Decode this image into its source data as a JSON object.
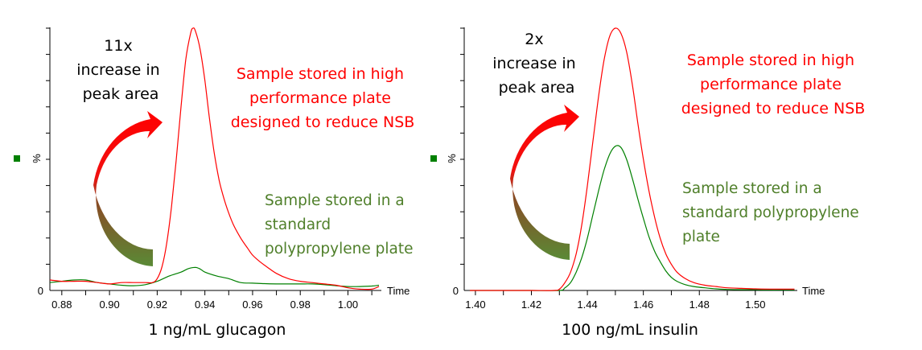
{
  "chart_data": [
    {
      "type": "line",
      "title": "1 ng/mL glucagon",
      "xlabel": "Time",
      "ylabel": "%",
      "xlim": [
        0.875,
        1.014
      ],
      "ylim": [
        0,
        100
      ],
      "x_ticks": [
        "0.88",
        "0.90",
        "0.92",
        "0.94",
        "0.96",
        "0.98",
        "1.00"
      ],
      "x_tick_values": [
        0.88,
        0.9,
        0.92,
        0.94,
        0.96,
        0.98,
        1.0
      ],
      "y_tick_labels": [
        "0"
      ],
      "grid": false,
      "legend_marker_color": "#008000",
      "annotation_increase": [
        "11x",
        "increase in",
        "peak area"
      ],
      "annotation_red": [
        "Sample stored in high",
        "performance plate",
        "designed to reduce NSB"
      ],
      "annotation_green": [
        "Sample stored in a",
        "standard",
        "polypropylene plate"
      ],
      "series": [
        {
          "name": "Sample stored in high performance plate designed to reduce NSB",
          "color": "#ff0000",
          "x": [
            0.875,
            0.88,
            0.885,
            0.89,
            0.895,
            0.9,
            0.905,
            0.91,
            0.915,
            0.918,
            0.92,
            0.922,
            0.924,
            0.926,
            0.928,
            0.93,
            0.932,
            0.934,
            0.935,
            0.936,
            0.938,
            0.94,
            0.942,
            0.944,
            0.946,
            0.948,
            0.95,
            0.952,
            0.955,
            0.958,
            0.96,
            0.963,
            0.966,
            0.97,
            0.975,
            0.98,
            0.985,
            0.99,
            0.995,
            1.0,
            1.005,
            1.01,
            1.013
          ],
          "values": [
            4.0,
            3.5,
            3.5,
            3.5,
            3.0,
            2.5,
            3.0,
            3.0,
            3.0,
            3.0,
            4.5,
            9.0,
            18.0,
            32.0,
            50.0,
            70.0,
            88.0,
            98.0,
            100.0,
            99.0,
            92.0,
            80.0,
            65.0,
            52.0,
            42.0,
            35.0,
            29.5,
            25.0,
            20.0,
            16.0,
            13.5,
            11.0,
            9.0,
            6.5,
            4.5,
            3.5,
            3.0,
            2.5,
            2.0,
            1.0,
            0.5,
            0.5,
            1.5
          ]
        },
        {
          "name": "Sample stored in a standard polypropylene plate",
          "color": "#008000",
          "x": [
            0.875,
            0.88,
            0.885,
            0.89,
            0.895,
            0.9,
            0.905,
            0.91,
            0.915,
            0.92,
            0.925,
            0.93,
            0.933,
            0.936,
            0.938,
            0.94,
            0.945,
            0.95,
            0.955,
            0.96,
            0.965,
            0.97,
            0.975,
            0.98,
            0.985,
            0.99,
            0.995,
            1.0,
            1.005,
            1.01,
            1.013
          ],
          "values": [
            3.0,
            3.5,
            4.0,
            4.0,
            3.0,
            2.5,
            2.0,
            1.8,
            2.2,
            3.5,
            5.5,
            7.0,
            8.3,
            8.8,
            8.2,
            7.0,
            5.5,
            4.5,
            3.0,
            2.8,
            2.6,
            2.5,
            2.5,
            2.5,
            2.5,
            2.2,
            1.8,
            1.5,
            1.5,
            1.7,
            2.0
          ]
        }
      ]
    },
    {
      "type": "line",
      "title": "100 ng/mL insulin",
      "xlabel": "Time",
      "ylabel": "%",
      "xlim": [
        1.396,
        1.515
      ],
      "ylim": [
        0,
        100
      ],
      "x_ticks": [
        "1.40",
        "1.42",
        "1.44",
        "1.46",
        "1.48",
        "1.50"
      ],
      "x_tick_values": [
        1.4,
        1.42,
        1.44,
        1.46,
        1.48,
        1.5
      ],
      "y_tick_labels": [
        "0"
      ],
      "grid": false,
      "legend_marker_color": "#008000",
      "annotation_increase": [
        "2x",
        "increase in",
        "peak area"
      ],
      "annotation_red": [
        "Sample stored in high",
        "performance plate",
        "designed to reduce NSB"
      ],
      "annotation_green": [
        "Sample stored in a",
        "standard polypropylene",
        "plate"
      ],
      "series": [
        {
          "name": "Sample stored in high performance plate designed to reduce NSB",
          "color": "#ff0000",
          "x": [
            1.398,
            1.41,
            1.42,
            1.428,
            1.43,
            1.432,
            1.434,
            1.436,
            1.438,
            1.44,
            1.442,
            1.444,
            1.446,
            1.448,
            1.45,
            1.452,
            1.454,
            1.456,
            1.458,
            1.46,
            1.462,
            1.464,
            1.466,
            1.468,
            1.47,
            1.472,
            1.475,
            1.478,
            1.482,
            1.486,
            1.49,
            1.495,
            1.5,
            1.505,
            1.51,
            1.514
          ],
          "values": [
            0,
            0,
            0,
            0,
            0.5,
            3.0,
            7.0,
            14.0,
            25.0,
            40.0,
            57.0,
            74.0,
            88.0,
            97.0,
            100.0,
            98.0,
            91.0,
            79.0,
            64.0,
            50.0,
            38.0,
            28.0,
            20.0,
            14.0,
            10.0,
            7.0,
            4.5,
            3.0,
            2.0,
            1.5,
            1.0,
            0.8,
            0.6,
            0.5,
            0.5,
            0.5
          ]
        },
        {
          "name": "Sample stored in a standard polypropylene plate",
          "color": "#008000",
          "x": [
            1.398,
            1.41,
            1.42,
            1.43,
            1.432,
            1.434,
            1.436,
            1.438,
            1.44,
            1.442,
            1.444,
            1.446,
            1.448,
            1.45,
            1.452,
            1.454,
            1.456,
            1.458,
            1.46,
            1.462,
            1.464,
            1.466,
            1.468,
            1.47,
            1.472,
            1.475,
            1.478,
            1.482,
            1.486,
            1.49,
            1.495,
            1.5,
            1.505,
            1.51,
            1.514
          ],
          "values": [
            0,
            0,
            0,
            0,
            1.0,
            3.0,
            7.0,
            12.5,
            20.0,
            29.0,
            38.0,
            46.0,
            52.0,
            55.0,
            54.5,
            50.0,
            43.0,
            35.0,
            27.5,
            20.5,
            15.0,
            11.0,
            7.5,
            5.0,
            3.5,
            2.2,
            1.5,
            1.0,
            0.6,
            0.4,
            0.3,
            0.3,
            0.2,
            0.2,
            0.2
          ]
        }
      ]
    }
  ]
}
